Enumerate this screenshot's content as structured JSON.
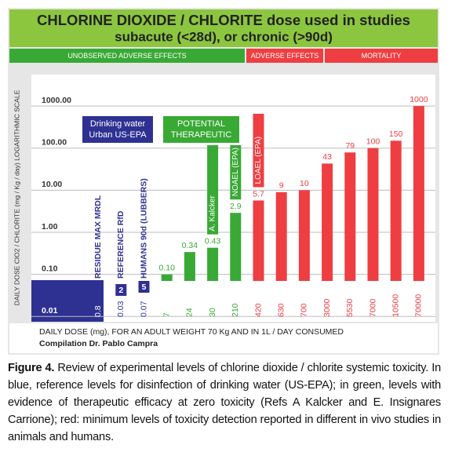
{
  "title": "CHLORINE DIOXIDE / CHLORITE dose used in studies",
  "subtitle": "subacute (<28d), or chronic (>90d)",
  "chart_data": {
    "type": "bar",
    "log_scale": true,
    "zones": [
      {
        "label": "UNOBSERVED ADVERSE EFFECTS",
        "color": "#39a935"
      },
      {
        "label": "ADVERSE EFFECTS",
        "color": "#ee3e42"
      },
      {
        "label": "MORTALITY",
        "color": "#ee3e42"
      }
    ],
    "y_axis_label": "DAILY DOSE  ClO2 / CHLORITE (mg / Kg / day) LOGARITHMIC SCALE",
    "x_axis_label": "DAILY DOSE (mg), FOR AN ADULT WEIGHT 70 Kg AND IN 1L / DAY CONSUMED",
    "credit": "Compilation Dr. Pablo Campra",
    "ylim": [
      0.0075,
      5600
    ],
    "yticks": [
      {
        "value": 0.01,
        "label": "0.01"
      },
      {
        "value": 0.1,
        "label": "0.10"
      },
      {
        "value": 1,
        "label": "1.00"
      },
      {
        "value": 10,
        "label": "10.00"
      },
      {
        "value": 100,
        "label": "100.00"
      },
      {
        "value": 1000,
        "label": "1000.00"
      }
    ],
    "grid": true,
    "categories": [
      "0.8",
      "0.03",
      "0.07",
      "7",
      "24",
      "30",
      "210",
      "420",
      "630",
      "700",
      "3000",
      "5530",
      "7000",
      "10500",
      "70000"
    ],
    "values": [
      null,
      null,
      null,
      0.1,
      0.34,
      0.43,
      2.9,
      5.7,
      9,
      10,
      43,
      79,
      100,
      150,
      1000
    ],
    "value_labels": [
      null,
      null,
      null,
      "0.10",
      "0.34",
      "0.43",
      "2.9",
      "5.7",
      "9",
      "10",
      "43",
      "79",
      "100",
      "150",
      "1000"
    ],
    "colors": [
      "#2e3192",
      "#2e3192",
      "#2e3192",
      "#39a935",
      "#39a935",
      "#39a935",
      "#39a935",
      "#ee3e42",
      "#ee3e42",
      "#ee3e42",
      "#ee3e42",
      "#ee3e42",
      "#ee3e42",
      "#ee3e42",
      "#ee3e42"
    ],
    "box_labels": [
      null,
      "2",
      "5",
      null,
      null,
      null,
      null,
      null,
      null,
      null,
      null,
      null,
      null,
      null,
      null
    ],
    "bar_texts": [
      "RESIDUE MAX MRDL",
      "REFERENCE RfD",
      "HUMANS 90d (LUBBERS)",
      null,
      null,
      "A. Kalcker",
      "NOAEL (EPA)",
      "LOAEL (EPA)",
      null,
      null,
      null,
      null,
      null,
      null,
      null
    ],
    "groups": [
      {
        "lines": [
          "Drinking water",
          "Urban US-EPA"
        ],
        "color": "#2e3192"
      },
      {
        "lines": [
          "POTENTIAL",
          "THERAPEUTIC"
        ],
        "color": "#39a935"
      }
    ]
  },
  "caption": {
    "label": "Figure 4.",
    "text": " Review of experimental levels of chlorine dioxide / chlorite systemic toxicity. In blue, reference levels for disinfection of drinking water (US-EPA); in green, levels with evidence of therapeutic efficacy at zero toxicity (Refs A Kalcker and E. Insignares Carrione); red: minimum levels of toxicity detection reported in different in vivo studies in animals and humans."
  }
}
